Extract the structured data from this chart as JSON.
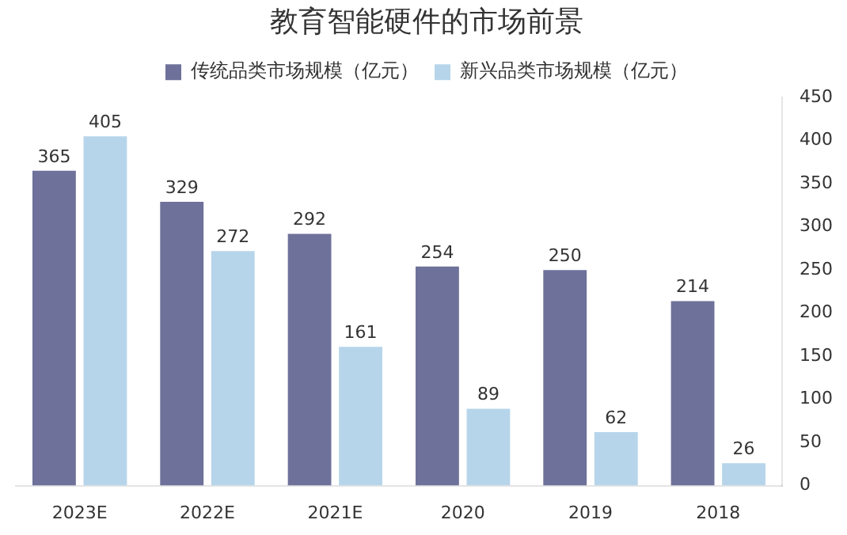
{
  "chart_data": {
    "type": "bar",
    "title": "教育智能硬件的市场前景",
    "categories": [
      "2023E",
      "2022E",
      "2021E",
      "2020",
      "2019",
      "2018"
    ],
    "series": [
      {
        "name": "传统品类市场规模（亿元）",
        "color": "#6e7199",
        "values": [
          365,
          329,
          292,
          254,
          250,
          214
        ]
      },
      {
        "name": "新兴品类市场规模（亿元）",
        "color": "#b7d5ea",
        "values": [
          405,
          272,
          161,
          89,
          62,
          26
        ]
      }
    ],
    "ylim": [
      0,
      450
    ],
    "yticks": [
      0,
      50,
      100,
      150,
      200,
      250,
      300,
      350,
      400,
      450
    ],
    "data_labels": true,
    "legend": "top",
    "grid": false
  }
}
